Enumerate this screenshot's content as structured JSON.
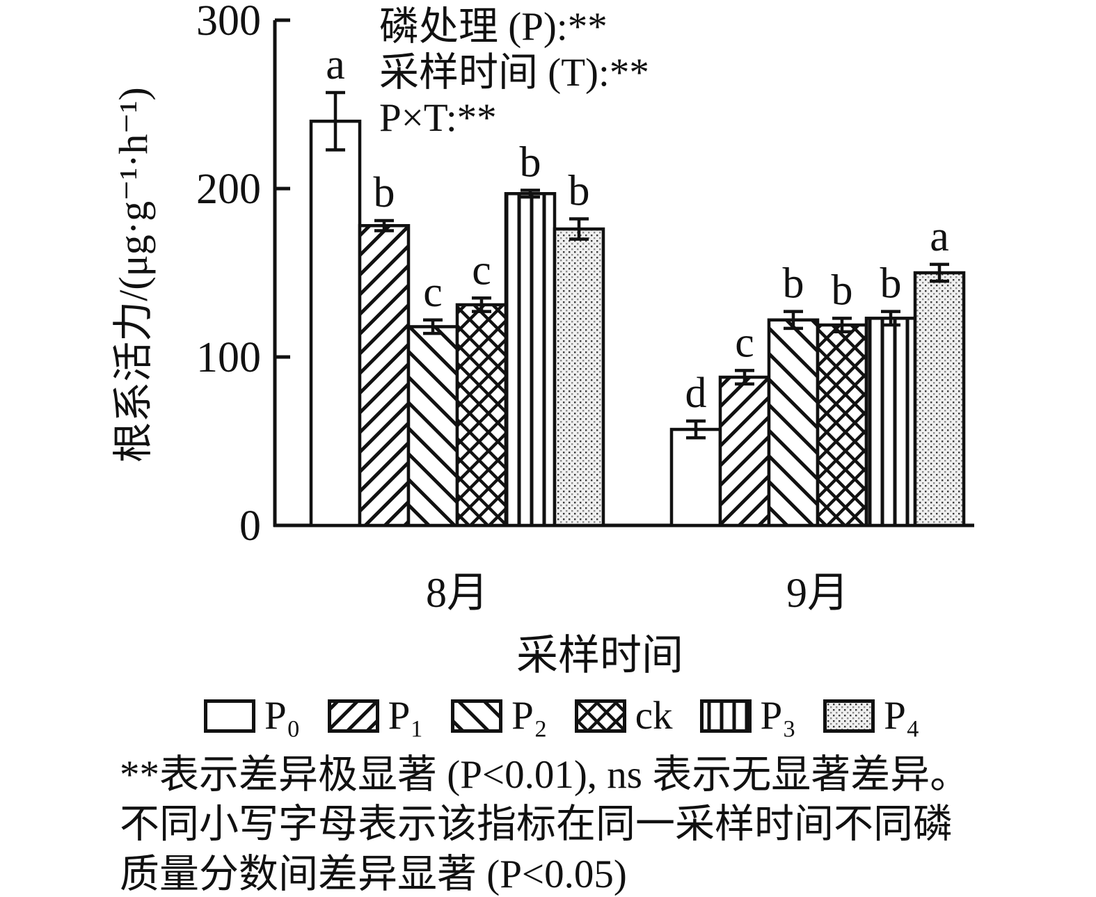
{
  "chart_data": {
    "type": "bar",
    "title": "",
    "ylabel": "根系活力/(μg·g⁻¹·h⁻¹)",
    "xlabel": "采样时间",
    "ylim": [
      0,
      300
    ],
    "yticks": [
      0,
      100,
      200,
      300
    ],
    "grid": false,
    "legend_position": "bottom",
    "categories": [
      "8月",
      "9月"
    ],
    "series": [
      {
        "name": "P₀",
        "pattern": "plain",
        "values": [
          240,
          57
        ],
        "errors": [
          17,
          5
        ],
        "letters": [
          "a",
          "d"
        ]
      },
      {
        "name": "P₁",
        "pattern": "diag-up",
        "values": [
          178,
          88
        ],
        "errors": [
          3,
          4
        ],
        "letters": [
          "b",
          "c"
        ]
      },
      {
        "name": "P₂",
        "pattern": "diag-down",
        "values": [
          118,
          122
        ],
        "errors": [
          4,
          5
        ],
        "letters": [
          "c",
          "b"
        ]
      },
      {
        "name": "ck",
        "pattern": "crosshatch",
        "values": [
          131,
          119
        ],
        "errors": [
          4,
          4
        ],
        "letters": [
          "c",
          "b"
        ]
      },
      {
        "name": "P₃",
        "pattern": "vertical",
        "values": [
          197,
          123
        ],
        "errors": [
          2,
          4
        ],
        "letters": [
          "b",
          "b"
        ]
      },
      {
        "name": "P₄",
        "pattern": "stipple",
        "values": [
          176,
          150
        ],
        "errors": [
          6,
          5
        ],
        "letters": [
          "b",
          "a"
        ]
      }
    ],
    "annotations": [
      "磷处理 (P):**",
      "采样时间 (T):**",
      "P×T:**"
    ],
    "footnote": [
      "**表示差异极显著 (P<0.01), ns 表示无显著差异。",
      "不同小写字母表示该指标在同一采样时间不同磷",
      "质量分数间差异显著 (P<0.05)"
    ],
    "colors": {
      "ink": "#111111",
      "bar_fill": "#ffffff",
      "stipple_bg": "#f0f0f0"
    }
  }
}
